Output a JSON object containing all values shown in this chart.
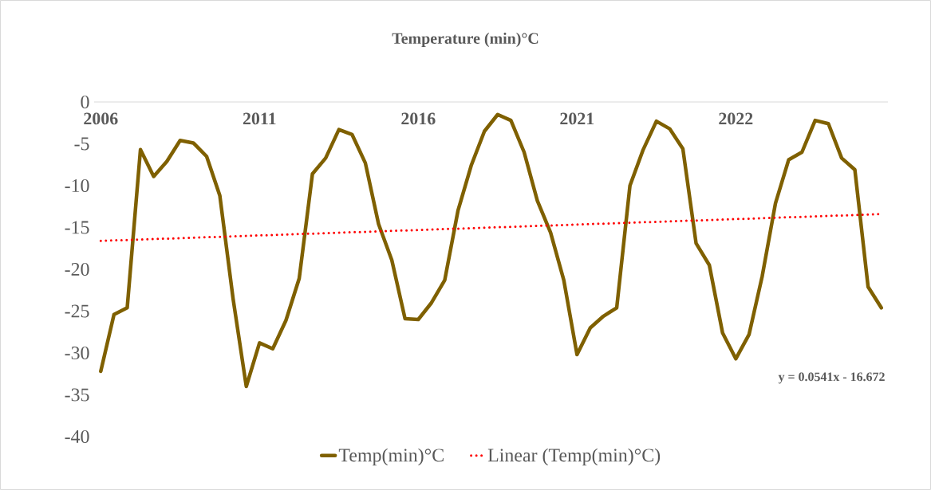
{
  "chart_data": {
    "type": "line",
    "title": "Temperature (min)°C",
    "categories": [
      "2006",
      null,
      null,
      null,
      null,
      null,
      null,
      null,
      null,
      null,
      null,
      null,
      "2011",
      null,
      null,
      null,
      null,
      null,
      null,
      null,
      null,
      null,
      null,
      null,
      "2016",
      null,
      null,
      null,
      null,
      null,
      null,
      null,
      null,
      null,
      null,
      null,
      "2021",
      null,
      null,
      null,
      null,
      null,
      null,
      null,
      null,
      null,
      null,
      null,
      "2022",
      null,
      null,
      null,
      null,
      null,
      null,
      null,
      null,
      null,
      null,
      null
    ],
    "series": [
      {
        "name": "Temp(min)°C",
        "color": "#7f6000",
        "line_style": "solid",
        "values": [
          -32.2,
          -25.4,
          -24.6,
          -5.7,
          -8.9,
          -7.1,
          -4.6,
          -4.9,
          -6.5,
          -11.2,
          -23.5,
          -34.0,
          -28.8,
          -29.5,
          -26.1,
          -21.1,
          -8.6,
          -6.7,
          -3.3,
          -3.9,
          -7.3,
          -14.6,
          -18.9,
          -25.9,
          -26.0,
          -24.0,
          -21.3,
          -13.0,
          -7.6,
          -3.5,
          -1.5,
          -2.2,
          -6.0,
          -11.8,
          -15.6,
          -21.3,
          -30.2,
          -27.0,
          -25.6,
          -24.6,
          -10.0,
          -5.7,
          -2.3,
          -3.2,
          -5.6,
          -16.9,
          -19.5,
          -27.6,
          -30.7,
          -27.8,
          -20.8,
          -12.1,
          -6.9,
          -6.0,
          -2.2,
          -2.6,
          -6.7,
          -8.1,
          -22.1,
          -24.6
        ]
      },
      {
        "name": "Linear (Temp(min)°C)",
        "type": "line",
        "color": "#ff0000",
        "line_style": "dotted",
        "values": [
          -16.6,
          null,
          null,
          null,
          null,
          null,
          null,
          null,
          null,
          null,
          null,
          null,
          null,
          null,
          null,
          null,
          null,
          null,
          null,
          null,
          null,
          null,
          null,
          null,
          null,
          null,
          null,
          null,
          null,
          null,
          null,
          null,
          null,
          null,
          null,
          null,
          null,
          null,
          null,
          null,
          null,
          null,
          null,
          null,
          null,
          null,
          null,
          null,
          null,
          null,
          null,
          null,
          null,
          null,
          null,
          null,
          null,
          null,
          null,
          -13.4
        ]
      }
    ],
    "ylim": [
      -40,
      0
    ],
    "yticks": [
      -40,
      -35,
      -30,
      -25,
      -20,
      -15,
      -10,
      -5,
      0
    ],
    "marker": "none",
    "legend": "bottom",
    "annotations": [
      "y = 0.0541x - 16.672"
    ]
  }
}
